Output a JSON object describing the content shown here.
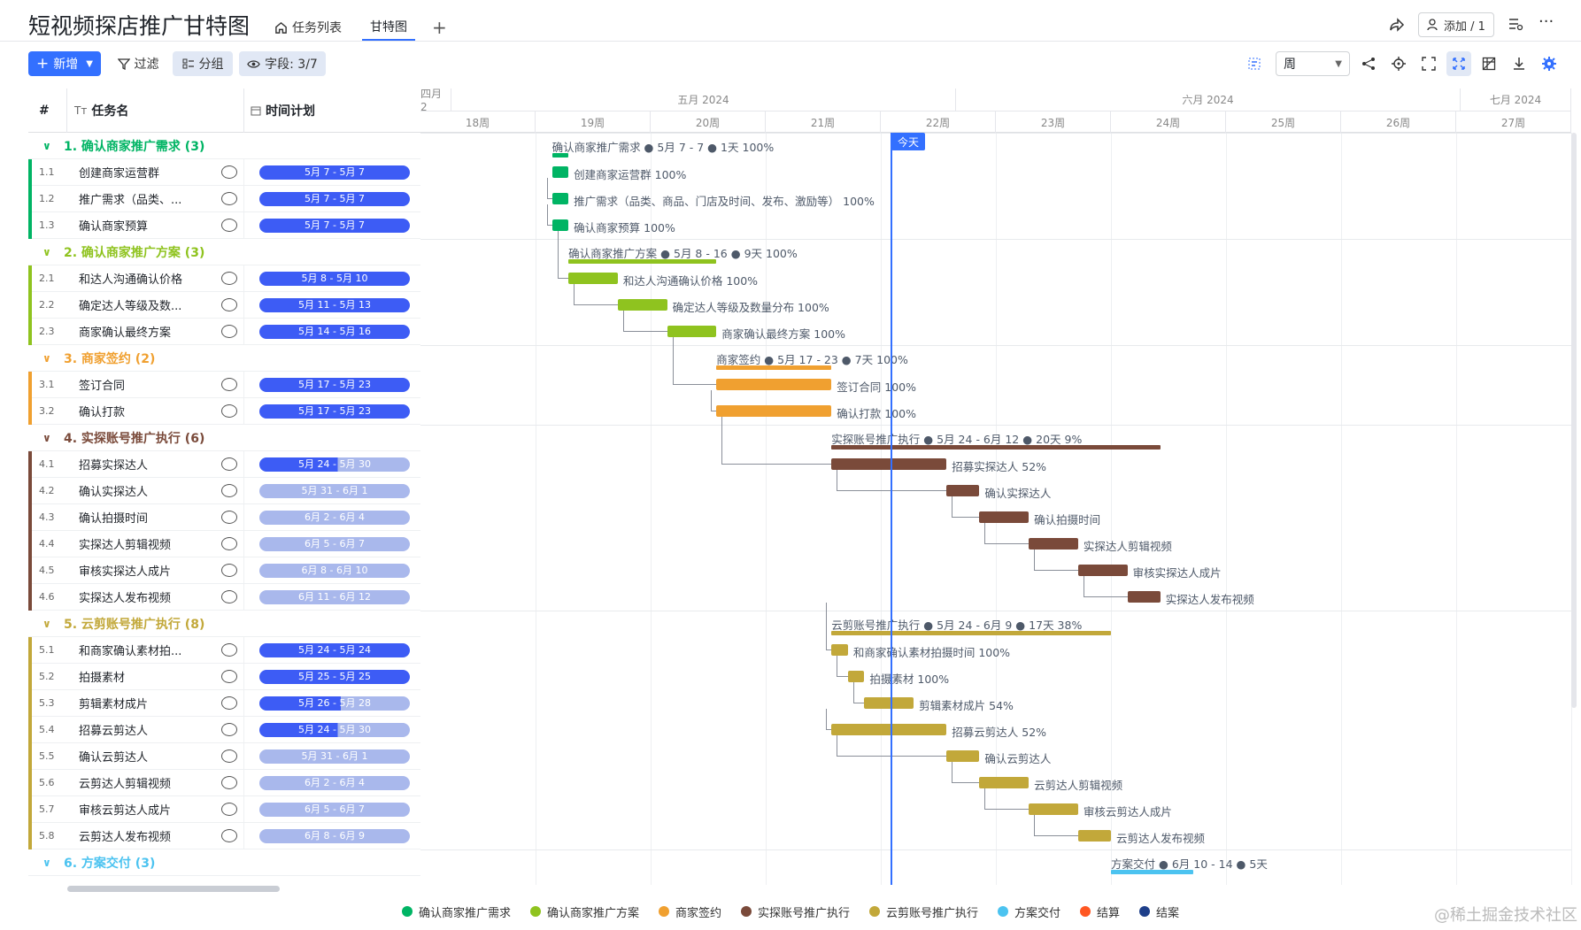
{
  "header": {
    "title": "短视频探店推广甘特图",
    "tabs": [
      {
        "label": "任务列表",
        "icon": "home-icon"
      },
      {
        "label": "甘特图",
        "active": true
      }
    ],
    "add_tab": "+",
    "share_icon": "share-icon",
    "add_member_label": "添加 / 1",
    "more_icon": "more-icon"
  },
  "toolbar": {
    "new_label": "新增",
    "filter_label": "过滤",
    "group_label": "分组",
    "fields_label": "字段: 3/7",
    "scale_value": "周"
  },
  "grid": {
    "columns": [
      "#",
      "任务名",
      "时间计划"
    ],
    "groups": [
      {
        "title": "1. 确认商家推广需求 (3)",
        "color": "#00b464",
        "summary": "确认商家推广需求 ● 5月 7 - 7 ● 1天 100%",
        "tasks": [
          {
            "id": "1.1",
            "name": "创建商家运营群",
            "plan": "5月 7 - 5月 7",
            "label": "创建商家运营群 100%",
            "progress": 1.0
          },
          {
            "id": "1.2",
            "name": "推广需求（品类、...",
            "plan": "5月 7 - 5月 7",
            "label": "推广需求（品类、商品、门店及时间、发布、激励等） 100%",
            "progress": 1.0
          },
          {
            "id": "1.3",
            "name": "确认商家预算",
            "plan": "5月 7 - 5月 7",
            "label": "确认商家预算 100%",
            "progress": 1.0
          }
        ]
      },
      {
        "title": "2. 确认商家推广方案 (3)",
        "color": "#8fc31f",
        "summary": "确认商家推广方案 ● 5月 8 - 16 ● 9天 100%",
        "tasks": [
          {
            "id": "2.1",
            "name": "和达人沟通确认价格",
            "plan": "5月 8 - 5月 10",
            "label": "和达人沟通确认价格 100%",
            "progress": 1.0
          },
          {
            "id": "2.2",
            "name": "确定达人等级及数...",
            "plan": "5月 11 - 5月 13",
            "label": "确定达人等级及数量分布 100%",
            "progress": 1.0
          },
          {
            "id": "2.3",
            "name": "商家确认最终方案",
            "plan": "5月 14 - 5月 16",
            "label": "商家确认最终方案 100%",
            "progress": 1.0
          }
        ]
      },
      {
        "title": "3. 商家签约 (2)",
        "color": "#f0a030",
        "summary": "商家签约 ● 5月 17 - 23 ● 7天 100%",
        "tasks": [
          {
            "id": "3.1",
            "name": "签订合同",
            "plan": "5月 17 - 5月 23",
            "label": "签订合同 100%",
            "progress": 1.0
          },
          {
            "id": "3.2",
            "name": "确认打款",
            "plan": "5月 17 - 5月 23",
            "label": "确认打款 100%",
            "progress": 1.0
          }
        ]
      },
      {
        "title": "4. 实探账号推广执行 (6)",
        "color": "#7a4a3a",
        "summary": "实探账号推广执行 ● 5月 24 - 6月 12 ● 20天 9%",
        "tasks": [
          {
            "id": "4.1",
            "name": "招募实探达人",
            "plan": "5月 24 - 5月 30",
            "label": "招募实探达人 52%",
            "progress": 0.52
          },
          {
            "id": "4.2",
            "name": "确认实探达人",
            "plan": "5月 31 - 6月 1",
            "label": "确认实探达人",
            "progress": 0
          },
          {
            "id": "4.3",
            "name": "确认拍摄时间",
            "plan": "6月 2 - 6月 4",
            "label": "确认拍摄时间",
            "progress": 0
          },
          {
            "id": "4.4",
            "name": "实探达人剪辑视频",
            "plan": "6月 5 - 6月 7",
            "label": "实探达人剪辑视频",
            "progress": 0
          },
          {
            "id": "4.5",
            "name": "审核实探达人成片",
            "plan": "6月 8 - 6月 10",
            "label": "审核实探达人成片",
            "progress": 0
          },
          {
            "id": "4.6",
            "name": "实探达人发布视频",
            "plan": "6月 11 - 6月 12",
            "label": "实探达人发布视频",
            "progress": 0
          }
        ]
      },
      {
        "title": "5. 云剪账号推广执行 (8)",
        "color": "#c2a83a",
        "summary": "云剪账号推广执行 ● 5月 24 - 6月 9 ● 17天 38%",
        "tasks": [
          {
            "id": "5.1",
            "name": "和商家确认素材拍...",
            "plan": "5月 24 - 5月 24",
            "label": "和商家确认素材拍摄时间 100%",
            "progress": 1.0
          },
          {
            "id": "5.2",
            "name": "拍摄素材",
            "plan": "5月 25 - 5月 25",
            "label": "拍摄素材 100%",
            "progress": 1.0
          },
          {
            "id": "5.3",
            "name": "剪辑素材成片",
            "plan": "5月 26 - 5月 28",
            "label": "剪辑素材成片 54%",
            "progress": 0.54
          },
          {
            "id": "5.4",
            "name": "招募云剪达人",
            "plan": "5月 24 - 5月 30",
            "label": "招募云剪达人 52%",
            "progress": 0.52
          },
          {
            "id": "5.5",
            "name": "确认云剪达人",
            "plan": "5月 31 - 6月 1",
            "label": "确认云剪达人",
            "progress": 0
          },
          {
            "id": "5.6",
            "name": "云剪达人剪辑视频",
            "plan": "6月 2 - 6月 4",
            "label": "云剪达人剪辑视频",
            "progress": 0
          },
          {
            "id": "5.7",
            "name": "审核云剪达人成片",
            "plan": "6月 5 - 6月 7",
            "label": "审核云剪达人成片",
            "progress": 0
          },
          {
            "id": "5.8",
            "name": "云剪达人发布视频",
            "plan": "6月 8 - 6月 9",
            "label": "云剪达人发布视频",
            "progress": 0
          }
        ]
      },
      {
        "title": "6. 方案交付 (3)",
        "color": "#4cc3f0",
        "summary": "方案交付 ● 6月 10 - 14 ● 5天",
        "tasks": []
      }
    ]
  },
  "timeline": {
    "months": [
      "四月 2",
      "五月 2024",
      "六月 2024",
      "七月 2024"
    ],
    "weeks": [
      "18周",
      "19周",
      "20周",
      "21周",
      "22周",
      "23周",
      "24周",
      "25周",
      "26周",
      "27周"
    ],
    "today_label": "今天"
  },
  "legend": [
    {
      "label": "确认商家推广需求",
      "color": "#00b464"
    },
    {
      "label": "确认商家推广方案",
      "color": "#8fc31f"
    },
    {
      "label": "商家签约",
      "color": "#f0a030"
    },
    {
      "label": "实探账号推广执行",
      "color": "#7a4a3a"
    },
    {
      "label": "云剪账号推广执行",
      "color": "#c2a83a"
    },
    {
      "label": "方案交付",
      "color": "#4cc3f0"
    },
    {
      "label": "结算",
      "color": "#ff5722"
    },
    {
      "label": "结案",
      "color": "#1e3f8a"
    }
  ],
  "watermark": "@稀土掘金技术社区"
}
